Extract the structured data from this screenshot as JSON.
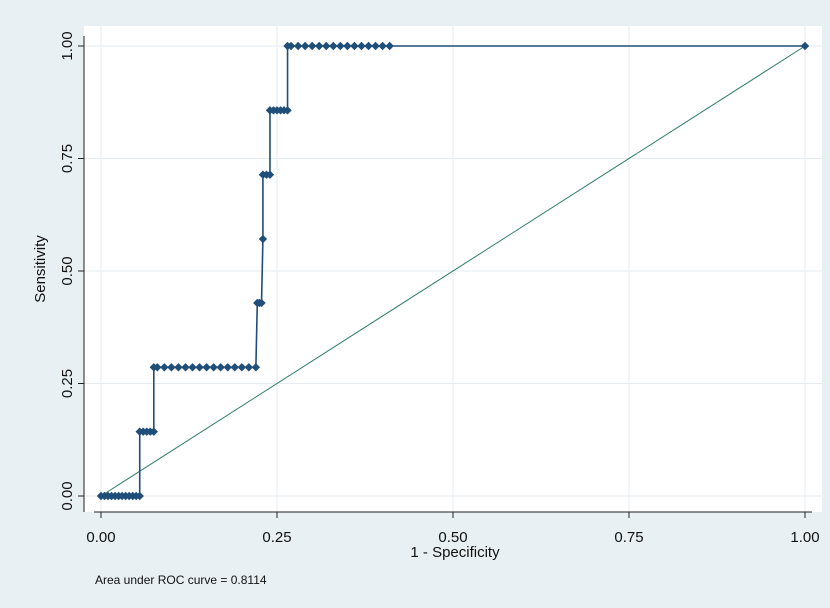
{
  "chart_data": {
    "type": "line",
    "xlabel": "1 - Specificity",
    "ylabel": "Sensitivity",
    "xlim": [
      0,
      1
    ],
    "ylim": [
      0,
      1
    ],
    "x_ticks": [
      "0.00",
      "0.25",
      "0.50",
      "0.75",
      "1.00"
    ],
    "y_ticks": [
      "0.00",
      "0.25",
      "0.50",
      "0.75",
      "1.00"
    ],
    "grid": true,
    "annotation": "Area under ROC curve = 0.8114",
    "colors": {
      "curve": "#1f4e79",
      "reference": "#2e7d6b",
      "grid": "#e6ebef",
      "background": "#e9f0f4",
      "plot": "#ffffff"
    },
    "series": [
      {
        "kind": "roc",
        "x": [
          0.0,
          0.005,
          0.01,
          0.015,
          0.02,
          0.025,
          0.03,
          0.035,
          0.04,
          0.045,
          0.05,
          0.055,
          0.055,
          0.06,
          0.065,
          0.07,
          0.075,
          0.075,
          0.08,
          0.09,
          0.1,
          0.11,
          0.12,
          0.13,
          0.14,
          0.15,
          0.16,
          0.17,
          0.18,
          0.19,
          0.2,
          0.21,
          0.22,
          0.222,
          0.225,
          0.228,
          0.23,
          0.23,
          0.235,
          0.24,
          0.24,
          0.245,
          0.25,
          0.255,
          0.26,
          0.265,
          0.265,
          0.27,
          0.28,
          0.29,
          0.3,
          0.31,
          0.32,
          0.33,
          0.34,
          0.35,
          0.36,
          0.37,
          0.38,
          0.39,
          0.4,
          0.41,
          1.0
        ],
        "y": [
          0.0,
          0.0,
          0.0,
          0.0,
          0.0,
          0.0,
          0.0,
          0.0,
          0.0,
          0.0,
          0.0,
          0.0,
          0.143,
          0.143,
          0.143,
          0.143,
          0.143,
          0.286,
          0.286,
          0.286,
          0.286,
          0.286,
          0.286,
          0.286,
          0.286,
          0.286,
          0.286,
          0.286,
          0.286,
          0.286,
          0.286,
          0.286,
          0.286,
          0.429,
          0.429,
          0.429,
          0.571,
          0.714,
          0.714,
          0.714,
          0.857,
          0.857,
          0.857,
          0.857,
          0.857,
          0.857,
          1.0,
          1.0,
          1.0,
          1.0,
          1.0,
          1.0,
          1.0,
          1.0,
          1.0,
          1.0,
          1.0,
          1.0,
          1.0,
          1.0,
          1.0,
          1.0,
          1.0
        ]
      },
      {
        "kind": "reference",
        "x": [
          0,
          1
        ],
        "y": [
          0,
          1
        ]
      }
    ]
  }
}
